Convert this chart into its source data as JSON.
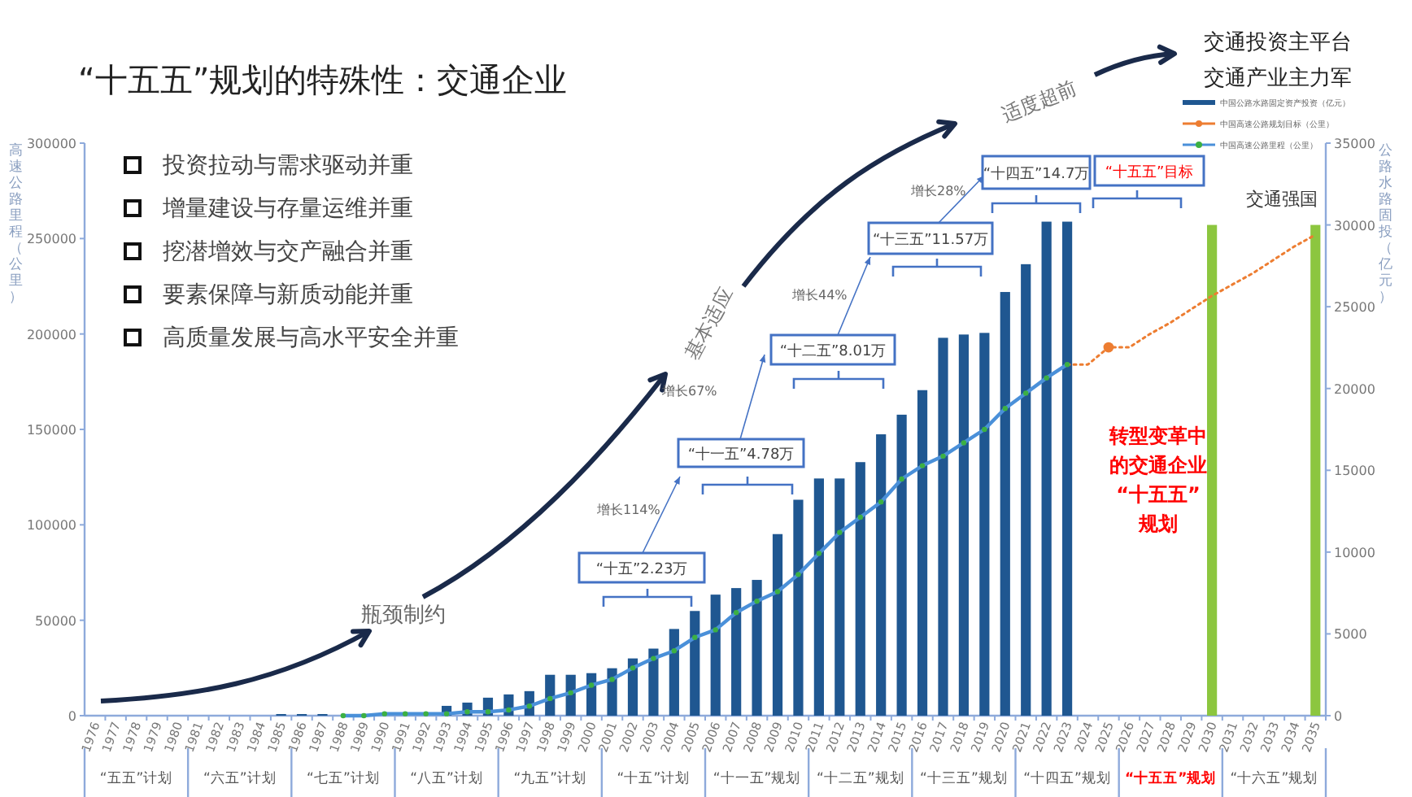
{
  "chart_data": {
    "type": "bar",
    "title": "“十五五”规划的特殊性：交通企业",
    "categories": [
      "1976",
      "1977",
      "1978",
      "1979",
      "1980",
      "1981",
      "1982",
      "1983",
      "1984",
      "1985",
      "1986",
      "1987",
      "1988",
      "1989",
      "1990",
      "1991",
      "1992",
      "1993",
      "1994",
      "1995",
      "1996",
      "1997",
      "1998",
      "1999",
      "2000",
      "2001",
      "2002",
      "2003",
      "2004",
      "2005",
      "2006",
      "2007",
      "2008",
      "2009",
      "2010",
      "2011",
      "2012",
      "2013",
      "2014",
      "2015",
      "2016",
      "2017",
      "2018",
      "2019",
      "2020",
      "2021",
      "2022",
      "2023",
      "2024",
      "2025",
      "2026",
      "2027",
      "2028",
      "2029",
      "2030",
      "2031",
      "2032",
      "2033",
      "2034",
      "2035"
    ],
    "series": [
      {
        "name": "中国公路水路固定资产投资（亿元）",
        "type": "bar",
        "axis": "y2",
        "color": "#1f5791",
        "values": [
          0,
          0,
          0,
          0,
          0,
          0,
          0,
          0,
          0,
          100,
          100,
          100,
          null,
          100,
          null,
          null,
          null,
          600,
          800,
          1100,
          1300,
          1500,
          2500,
          2500,
          2600,
          2900,
          3500,
          4100,
          5300,
          6400,
          7400,
          7800,
          8300,
          11100,
          13200,
          14500,
          14500,
          15500,
          17200,
          18400,
          19900,
          23100,
          23300,
          23400,
          25900,
          27600,
          30200,
          30200,
          null,
          null,
          null,
          null,
          null,
          null,
          null,
          null,
          null,
          null,
          null,
          null
        ]
      },
      {
        "type": "bar",
        "axis": "y2",
        "color": "#8cc63f",
        "values": [
          null,
          null,
          null,
          null,
          null,
          null,
          null,
          null,
          null,
          null,
          null,
          null,
          null,
          null,
          null,
          null,
          null,
          null,
          null,
          null,
          null,
          null,
          null,
          null,
          null,
          null,
          null,
          null,
          null,
          null,
          null,
          null,
          null,
          null,
          null,
          null,
          null,
          null,
          null,
          null,
          null,
          null,
          null,
          null,
          null,
          null,
          null,
          null,
          null,
          null,
          null,
          null,
          null,
          null,
          30000,
          null,
          null,
          null,
          null,
          30000
        ]
      },
      {
        "name": "中国高速公路规划目标（公里）",
        "type": "line",
        "axis": "y",
        "color": "#ed7d31",
        "line_style": "dotted",
        "marker": "none",
        "values": [
          null,
          null,
          null,
          null,
          null,
          null,
          null,
          null,
          null,
          null,
          null,
          null,
          null,
          null,
          null,
          null,
          null,
          null,
          null,
          null,
          null,
          null,
          null,
          null,
          null,
          null,
          null,
          null,
          null,
          null,
          null,
          null,
          null,
          null,
          null,
          null,
          null,
          null,
          null,
          null,
          null,
          null,
          null,
          null,
          null,
          null,
          null,
          184000,
          184000,
          193000,
          193000,
          200000,
          206000,
          213000,
          220000,
          226000,
          232000,
          239000,
          246000,
          252000
        ]
      },
      {
        "type": "scatter",
        "axis": "y",
        "color": "#ed7d31",
        "marker": "circle",
        "values": [
          null,
          null,
          null,
          null,
          null,
          null,
          null,
          null,
          null,
          null,
          null,
          null,
          null,
          null,
          null,
          null,
          null,
          null,
          null,
          null,
          null,
          null,
          null,
          null,
          null,
          null,
          null,
          null,
          null,
          null,
          null,
          null,
          null,
          null,
          null,
          null,
          null,
          null,
          null,
          null,
          null,
          null,
          null,
          null,
          null,
          null,
          null,
          null,
          null,
          193000,
          null,
          null,
          null,
          null,
          null,
          null,
          null,
          null,
          null,
          null
        ]
      },
      {
        "name": "中国高速公路里程（公里）",
        "type": "line",
        "axis": "y",
        "color": "#4a90d9",
        "line_style": "solid",
        "marker": "circle",
        "values": [
          null,
          null,
          null,
          null,
          null,
          null,
          null,
          null,
          null,
          null,
          null,
          null,
          0,
          0,
          1000,
          1000,
          1000,
          1000,
          2000,
          2000,
          3000,
          5000,
          9000,
          12000,
          16000,
          19000,
          25000,
          30000,
          34000,
          41000,
          45000,
          54000,
          60000,
          65000,
          74000,
          85000,
          96000,
          104000,
          112000,
          124000,
          131000,
          136000,
          143000,
          150000,
          161000,
          169000,
          177000,
          184000,
          null,
          null,
          null,
          null,
          null,
          null,
          null,
          null,
          null,
          null,
          null,
          null
        ]
      }
    ],
    "ylabel": "高速公路里程（公里）",
    "y2label": "公路水路固投（亿元）",
    "ylim": [
      0,
      300000
    ],
    "yticks": [
      0,
      50000,
      100000,
      150000,
      200000,
      250000,
      300000
    ],
    "y2lim": [
      0,
      35000
    ],
    "y2ticks": [
      0,
      5000,
      10000,
      15000,
      20000,
      25000,
      30000,
      35000
    ],
    "grid": false,
    "legend": "top right",
    "annotations": [
      "投资拉动与需求驱动并重",
      "增量建设与存量运维并重",
      "挖潜增效与交产融合并重",
      "要素保障与新质动能并重",
      "高质量发展与高水平安全并重",
      "瓶颈制约",
      "基本适应",
      "适度超前",
      "交通投资主平台",
      "交通产业主力军",
      "“十五”2.23万",
      "“十一五”4.78万",
      "“十二五”8.01万",
      "“十三五”11.57万",
      "“十四五”14.7万",
      "“十五五”目标",
      "增长114%",
      "增长67%",
      "增长44%",
      "增长28%",
      "交通强国",
      "转型变革中的交通企业“十五五”规划",
      "“五五”计划",
      "“六五”计划",
      "“七五”计划",
      "“八五”计划",
      "“九五”计划",
      "“十五”计划",
      "“十一五”规划",
      "“十二五”规划",
      "“十三五”规划",
      "“十四五”规划",
      "“十五五”规划",
      "“十六五”规划"
    ]
  }
}
